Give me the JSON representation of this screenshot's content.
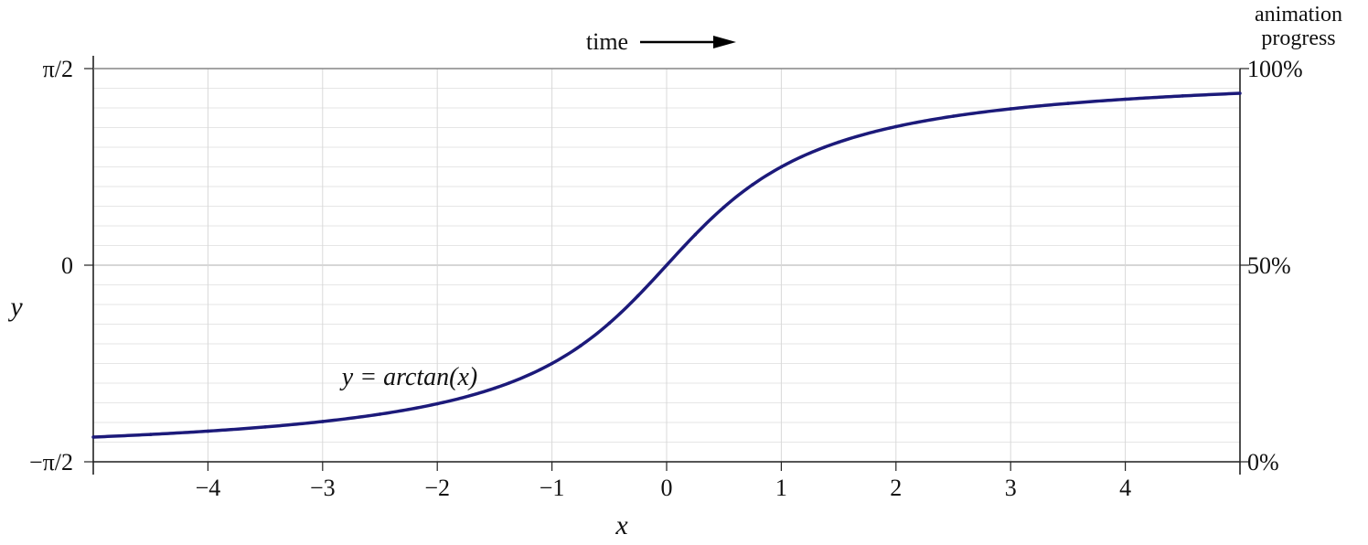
{
  "chart_data": {
    "type": "line",
    "function": "arctan",
    "xlim": [
      -5,
      5
    ],
    "ylim": [
      -1.5708,
      1.5708
    ],
    "grid": true,
    "xlabel": "x",
    "ylabel": "y",
    "x_ticks": [
      -4,
      -3,
      -2,
      -1,
      0,
      1,
      2,
      3,
      4
    ],
    "x_tick_labels": [
      "−4",
      "−3",
      "−2",
      "−1",
      "0",
      "1",
      "2",
      "3",
      "4"
    ],
    "y_ticks": [
      -1.5708,
      0,
      1.5708
    ],
    "y_tick_labels": [
      "−π/2",
      "0",
      "π/2"
    ],
    "right_axis": {
      "title_line1": "animation",
      "title_line2": "progress",
      "ticks": [
        -1.5708,
        0,
        1.5708
      ],
      "tick_labels": [
        "0%",
        "50%",
        "100%"
      ]
    },
    "time_label": "time",
    "annotation": "y = arctan(x)",
    "series": [
      {
        "color": "#1c1a7a",
        "x": [
          -5,
          -4.5,
          -4,
          -3.5,
          -3,
          -2.5,
          -2,
          -1.5,
          -1,
          -0.75,
          -0.5,
          -0.25,
          0,
          0.25,
          0.5,
          0.75,
          1,
          1.5,
          2,
          2.5,
          3,
          3.5,
          4,
          4.5,
          5
        ],
        "y": [
          -1.3734,
          -1.3521,
          -1.3258,
          -1.2925,
          -1.249,
          -1.1903,
          -1.1071,
          -0.9828,
          -0.7854,
          -0.6435,
          -0.4636,
          -0.245,
          0,
          0.245,
          0.4636,
          0.6435,
          0.7854,
          0.9828,
          1.1071,
          1.1903,
          1.249,
          1.2925,
          1.3258,
          1.3521,
          1.3734
        ]
      }
    ]
  }
}
